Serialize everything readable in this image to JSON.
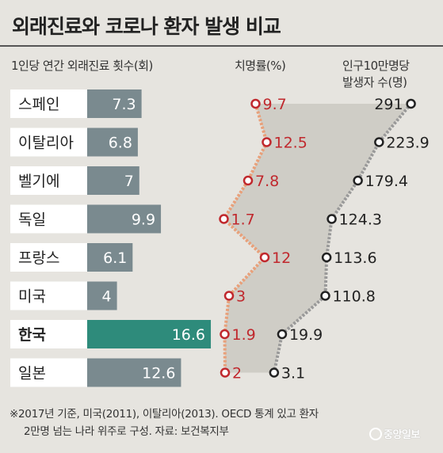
{
  "title": "외래진료와 코로나 환자 발생 비교",
  "headers": {
    "visits": "1인당 연간 외래진료 횟수(회)",
    "fatality": "치명률(%)",
    "cases_line1": "인구10만명당",
    "cases_line2": "발생자 수(명)"
  },
  "footnote": {
    "line1": "※2017년 기준, 미국(2011), 이탈리아(2013). OECD 통계 있고 환자",
    "line2": "2만명 넘는 나라 위주로 구성.  자료: 보건복지부"
  },
  "logo": "중앙일보",
  "colors": {
    "bar": "#7a8a8f",
    "highlight_bar": "#2e8b7b",
    "fatality": "#c0282d",
    "fatality_line": "#e8a07a",
    "cases": "#222222",
    "cases_line": "#999999",
    "band": "#cfcdc6"
  },
  "chart_data": {
    "type": "bar",
    "title": "외래진료와 코로나 환자 발생 비교",
    "categories": [
      "스페인",
      "이탈리아",
      "벨기에",
      "독일",
      "프랑스",
      "미국",
      "한국",
      "일본"
    ],
    "highlight": "한국",
    "series": [
      {
        "name": "1인당 연간 외래진료 횟수(회)",
        "type": "bar",
        "values": [
          7.3,
          6.8,
          7,
          9.9,
          6.1,
          4,
          16.6,
          12.6
        ],
        "labels": [
          "7.3",
          "6.8",
          "7",
          "9.9",
          "6.1",
          "4",
          "16.6",
          "12.6"
        ]
      },
      {
        "name": "치명률(%)",
        "type": "line",
        "values": [
          9.7,
          12.5,
          7.8,
          1.7,
          12,
          3,
          1.9,
          2
        ],
        "labels": [
          "9.7",
          "12.5",
          "7.8",
          "1.7",
          "12",
          "3",
          "1.9",
          "2"
        ]
      },
      {
        "name": "인구10만명당 발생자 수(명)",
        "type": "line",
        "values": [
          291,
          223.9,
          179.4,
          124.3,
          113.6,
          110.8,
          19.9,
          3.1
        ],
        "labels": [
          "291",
          "223.9",
          "179.4",
          "124.3",
          "113.6",
          "110.8",
          "19.9",
          "3.1"
        ]
      }
    ]
  }
}
